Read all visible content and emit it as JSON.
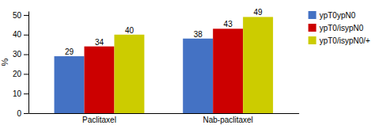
{
  "chart_data": {
    "type": "bar",
    "categories": [
      "Paclitaxel",
      "Nab-paclitaxel"
    ],
    "series": [
      {
        "name": "ypT0ypN0",
        "color": "#4472C4",
        "values": [
          29,
          38
        ]
      },
      {
        "name": "ypT0/isypN0",
        "color": "#CC0000",
        "values": [
          34,
          43
        ]
      },
      {
        "name": "ypT0/isypN0/+",
        "color": "#CCCC00",
        "values": [
          40,
          49
        ]
      }
    ],
    "ylabel": "%",
    "ylim": [
      0,
      52
    ],
    "yticks": [
      0,
      10,
      20,
      30,
      40,
      50
    ],
    "legend": "upper right",
    "data_labels": true,
    "grid": false
  }
}
